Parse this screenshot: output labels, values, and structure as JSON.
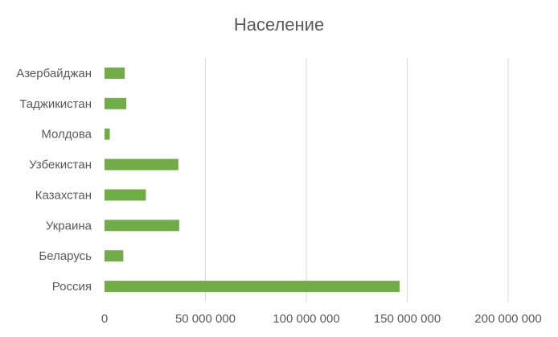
{
  "chart_data": {
    "type": "bar",
    "orientation": "horizontal",
    "title": "Население",
    "categories": [
      "Азербайджан",
      "Таджикистан",
      "Молдова",
      "Узбекистан",
      "Казахстан",
      "Украина",
      "Беларусь",
      "Россия"
    ],
    "values": [
      10000000,
      10800000,
      2600000,
      36600000,
      20500000,
      37000000,
      9300000,
      146200000
    ],
    "xlim": [
      0,
      200000000
    ],
    "xticks": [
      0,
      50000000,
      100000000,
      150000000,
      200000000
    ],
    "xtick_labels": [
      "0",
      "50 000 000",
      "100 000 000",
      "150 000 000",
      "200 000 000"
    ],
    "grid": "vertical",
    "legend": "none",
    "colors": {
      "bar": "#70ad47",
      "grid": "#d9d9d9",
      "text": "#595959"
    }
  }
}
